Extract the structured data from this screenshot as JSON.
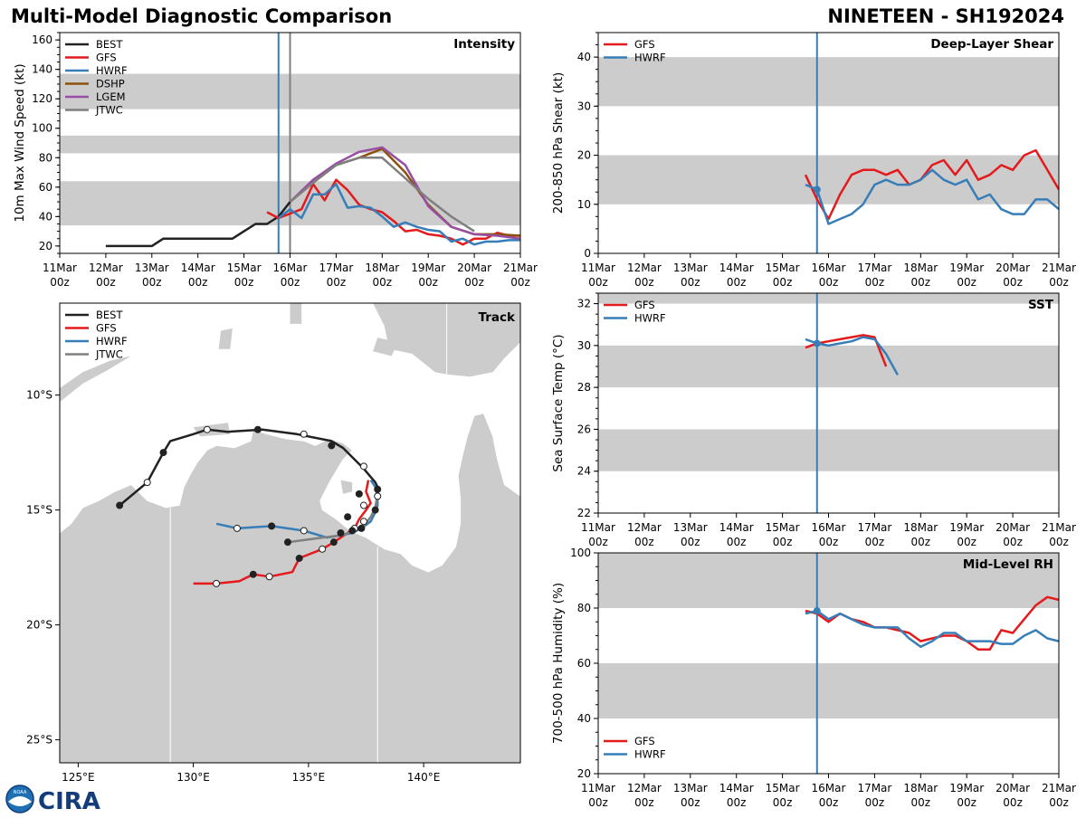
{
  "header": {
    "title": "Multi-Model Diagnostic Comparison",
    "storm": "NINETEEN - SH192024"
  },
  "colors": {
    "BEST": "#222222",
    "GFS": "#e41a1c",
    "HWRF": "#377eb8",
    "DSHP": "#8c510a",
    "LGEM": "#984ea3",
    "JTWC": "#7f7f7f",
    "land": "#cccccc",
    "band": "#cccccc"
  },
  "time_axis": {
    "labels": [
      "11Mar",
      "12Mar",
      "13Mar",
      "14Mar",
      "15Mar",
      "16Mar",
      "17Mar",
      "18Mar",
      "19Mar",
      "20Mar",
      "21Mar"
    ],
    "sublabel": "00z",
    "range": [
      0,
      10
    ]
  },
  "logo": {
    "text": "CIRA",
    "seal": "NOAA"
  },
  "chart_data": [
    {
      "id": "intensity",
      "type": "line",
      "title": "Intensity",
      "ylabel": "10m Max Wind Speed (kt)",
      "ylim": [
        15,
        165
      ],
      "yticks": [
        20,
        40,
        60,
        80,
        100,
        120,
        140,
        160
      ],
      "bands": [
        [
          34,
          64
        ],
        [
          83,
          95
        ],
        [
          113,
          137
        ]
      ],
      "vlines": [
        {
          "x": 4.75,
          "series": "HWRF"
        },
        {
          "x": 5.0,
          "series": "JTWC"
        }
      ],
      "series": [
        {
          "name": "BEST",
          "x": [
            1,
            1.5,
            2,
            2.25,
            2.5,
            3,
            3.5,
            3.75,
            4,
            4.25,
            4.5,
            4.75,
            5
          ],
          "y": [
            20,
            20,
            20,
            25,
            25,
            25,
            25,
            25,
            30,
            35,
            35,
            40,
            50
          ]
        },
        {
          "name": "GFS",
          "x": [
            4.5,
            4.75,
            5,
            5.25,
            5.5,
            5.75,
            6,
            6.25,
            6.5,
            6.75,
            7,
            7.25,
            7.5,
            7.75,
            8,
            8.25,
            8.5,
            8.75,
            9,
            9.25,
            9.5,
            9.75,
            10
          ],
          "y": [
            43,
            39,
            42,
            45,
            62,
            51,
            65,
            58,
            48,
            45,
            43,
            37,
            30,
            31,
            28,
            27,
            25,
            21,
            25,
            25,
            29,
            27,
            27
          ]
        },
        {
          "name": "HWRF",
          "x": [
            4.75,
            5,
            5.25,
            5.5,
            5.75,
            6,
            6.25,
            6.5,
            6.75,
            7,
            7.25,
            7.5,
            7.75,
            8,
            8.25,
            8.5,
            8.75,
            9,
            9.25,
            9.5,
            9.75,
            10
          ],
          "y": [
            39,
            45,
            39,
            55,
            55,
            62,
            46,
            47,
            46,
            40,
            33,
            36,
            33,
            31,
            30,
            23,
            25,
            21,
            23,
            23,
            24,
            24
          ]
        },
        {
          "name": "DSHP",
          "x": [
            5,
            5.5,
            6,
            6.5,
            7,
            7.5,
            8,
            8.5,
            9,
            9.5,
            10
          ],
          "y": [
            50,
            63,
            75,
            80,
            86,
            70,
            48,
            33,
            28,
            28,
            27
          ]
        },
        {
          "name": "LGEM",
          "x": [
            5,
            5.5,
            6,
            6.5,
            7,
            7.5,
            8,
            8.5,
            9,
            9.5,
            10
          ],
          "y": [
            50,
            65,
            76,
            84,
            87,
            75,
            47,
            33,
            28,
            27,
            25
          ]
        },
        {
          "name": "JTWC",
          "x": [
            5,
            5.5,
            6,
            6.5,
            7,
            7.5,
            8,
            8.5,
            9
          ],
          "y": [
            50,
            63,
            75,
            80,
            80,
            66,
            52,
            40,
            30
          ]
        }
      ]
    },
    {
      "id": "shear",
      "type": "line",
      "title": "Deep-Layer Shear",
      "ylabel": "200-850 hPa Shear (kt)",
      "ylim": [
        0,
        45
      ],
      "yticks": [
        0,
        10,
        20,
        30,
        40
      ],
      "bands": [
        [
          10,
          20
        ],
        [
          30,
          40
        ]
      ],
      "vlines": [
        {
          "x": 4.75,
          "series": "HWRF"
        }
      ],
      "series": [
        {
          "name": "GFS",
          "x": [
            4.5,
            4.75,
            5,
            5.25,
            5.5,
            5.75,
            6,
            6.25,
            6.5,
            6.75,
            7,
            7.25,
            7.5,
            7.75,
            8,
            8.25,
            8.5,
            8.75,
            9,
            9.25,
            9.5,
            9.75,
            10
          ],
          "y": [
            16,
            11,
            7,
            12,
            16,
            17,
            17,
            16,
            17,
            14,
            15,
            18,
            19,
            16,
            19,
            15,
            16,
            18,
            17,
            20,
            21,
            17,
            13
          ]
        },
        {
          "name": "HWRF",
          "x": [
            4.5,
            4.75,
            5,
            5.25,
            5.5,
            5.75,
            6,
            6.25,
            6.5,
            6.75,
            7,
            7.25,
            7.5,
            7.75,
            8,
            8.25,
            8.5,
            8.75,
            9,
            9.25,
            9.5,
            9.75,
            10
          ],
          "y": [
            14,
            13,
            6,
            7,
            8,
            10,
            14,
            15,
            14,
            14,
            15,
            17,
            15,
            14,
            15,
            11,
            12,
            9,
            8,
            8,
            11,
            11,
            9
          ]
        }
      ]
    },
    {
      "id": "sst",
      "type": "line",
      "title": "SST",
      "ylabel": "Sea Surface Temp (°C)",
      "ylim": [
        22,
        32.5
      ],
      "yticks": [
        22,
        24,
        26,
        28,
        30,
        32
      ],
      "bands": [
        [
          24,
          26
        ],
        [
          28,
          30
        ],
        [
          32,
          32.5
        ]
      ],
      "vlines": [
        {
          "x": 4.75,
          "series": "HWRF"
        }
      ],
      "series": [
        {
          "name": "GFS",
          "x": [
            4.5,
            4.75,
            5,
            5.25,
            5.5,
            5.75,
            6,
            6.25,
            6.5
          ],
          "y": [
            29.9,
            30.1,
            30.2,
            30.3,
            30.4,
            30.5,
            30.4,
            29.0,
            null
          ]
        },
        {
          "name": "HWRF",
          "x": [
            4.5,
            4.75,
            5,
            5.25,
            5.5,
            5.75,
            6,
            6.25,
            6.5
          ],
          "y": [
            30.3,
            30.1,
            30.0,
            30.1,
            30.2,
            30.4,
            30.3,
            29.6,
            28.6
          ]
        }
      ]
    },
    {
      "id": "rh",
      "type": "line",
      "title": "Mid-Level RH",
      "ylabel": "700-500 hPa Humidity (%)",
      "ylim": [
        20,
        100
      ],
      "yticks": [
        20,
        40,
        60,
        80,
        100
      ],
      "bands": [
        [
          40,
          60
        ],
        [
          80,
          100
        ]
      ],
      "vlines": [
        {
          "x": 4.75,
          "series": "HWRF"
        }
      ],
      "series": [
        {
          "name": "GFS",
          "x": [
            4.5,
            4.75,
            5,
            5.25,
            5.5,
            5.75,
            6,
            6.25,
            6.5,
            6.75,
            7,
            7.25,
            7.5,
            7.75,
            8,
            8.25,
            8.5,
            8.75,
            9,
            9.25,
            9.5,
            9.75,
            10
          ],
          "y": [
            79,
            78,
            75,
            78,
            76,
            75,
            73,
            73,
            72,
            71,
            68,
            69,
            70,
            70,
            68,
            65,
            65,
            72,
            71,
            76,
            81,
            84,
            83
          ]
        },
        {
          "name": "HWRF",
          "x": [
            4.5,
            4.75,
            5,
            5.25,
            5.5,
            5.75,
            6,
            6.25,
            6.5,
            6.75,
            7,
            7.25,
            7.5,
            7.75,
            8,
            8.25,
            8.5,
            8.75,
            9,
            9.25,
            9.5,
            9.75,
            10
          ],
          "y": [
            78,
            79,
            76,
            78,
            76,
            74,
            73,
            73,
            73,
            69,
            66,
            68,
            71,
            71,
            68,
            68,
            68,
            67,
            67,
            70,
            72,
            69,
            68
          ]
        }
      ]
    },
    {
      "id": "track",
      "type": "scatter",
      "title": "Track",
      "lon_range": [
        124.2,
        144.2
      ],
      "lat_range": [
        -26,
        -6
      ],
      "xticks": [
        {
          "v": 125,
          "label": "125°E"
        },
        {
          "v": 130,
          "label": "130°E"
        },
        {
          "v": 135,
          "label": "135°E"
        },
        {
          "v": 140,
          "label": "140°E"
        }
      ],
      "yticks": [
        {
          "v": -10,
          "label": "10°S"
        },
        {
          "v": -15,
          "label": "15°S"
        },
        {
          "v": -20,
          "label": "20°S"
        },
        {
          "v": -25,
          "label": "25°S"
        }
      ],
      "series": [
        {
          "name": "BEST",
          "lon": [
            138.0,
            138.0,
            137.9,
            137.4,
            136.5,
            136.0,
            134.5,
            133.0,
            131.5,
            130.6,
            130.0,
            129.0,
            128.7,
            128.0,
            126.8
          ],
          "lat": [
            -14.3,
            -14.0,
            -13.8,
            -13.2,
            -12.3,
            -12.0,
            -11.7,
            -11.5,
            -11.6,
            -11.5,
            -11.7,
            -12.0,
            -12.5,
            -13.8,
            -14.8
          ]
        },
        {
          "name": "GFS",
          "lon": [
            137.6,
            137.5,
            137.7,
            137.5,
            137.2,
            137.0,
            136.7,
            136.1,
            135.6,
            134.6,
            134.3,
            133.3,
            132.6,
            132.0,
            131.0,
            130.0
          ],
          "lat": [
            -13.7,
            -14.2,
            -14.7,
            -15.0,
            -15.4,
            -15.8,
            -16.0,
            -16.4,
            -16.7,
            -17.1,
            -17.7,
            -17.9,
            -17.8,
            -18.1,
            -18.2,
            -18.2
          ]
        },
        {
          "name": "HWRF",
          "lon": [
            137.7,
            137.9,
            138.0,
            138.0,
            137.9,
            137.7,
            137.3,
            136.9,
            136.4,
            135.8,
            134.8,
            133.4,
            131.9,
            131.0
          ],
          "lat": [
            -13.7,
            -14.0,
            -14.4,
            -14.8,
            -15.1,
            -15.5,
            -15.8,
            -16.0,
            -16.1,
            -16.2,
            -15.9,
            -15.7,
            -15.8,
            -15.6
          ]
        },
        {
          "name": "JTWC",
          "lon": [
            137.9,
            138.0,
            137.9,
            137.7,
            137.4,
            137.0,
            136.5,
            135.6,
            134.1
          ],
          "lat": [
            -14.0,
            -14.3,
            -14.9,
            -15.3,
            -15.7,
            -15.9,
            -16.1,
            -16.2,
            -16.4
          ]
        }
      ],
      "points": [
        {
          "series": "BEST",
          "lon": [
            126.8,
            128.7,
            132.8,
            136.0
          ],
          "lat": [
            -14.8,
            -12.5,
            -11.5,
            -12.2
          ],
          "filled": true
        },
        {
          "series": "BEST",
          "lon": [
            128.0,
            130.6,
            134.8,
            137.4
          ],
          "lat": [
            -13.8,
            -11.5,
            -11.7,
            -13.1
          ],
          "filled": false
        },
        {
          "series": "GFS",
          "lon": [
            137.2,
            136.7,
            136.1,
            134.6,
            132.6
          ],
          "lat": [
            -14.3,
            -15.3,
            -16.4,
            -17.1,
            -17.8
          ],
          "filled": true
        },
        {
          "series": "GFS",
          "lon": [
            137.4,
            137.0,
            135.6,
            133.3,
            131.0
          ],
          "lat": [
            -14.8,
            -15.8,
            -16.7,
            -17.9,
            -18.2
          ],
          "filled": false
        },
        {
          "series": "HWRF",
          "lon": [
            137.9,
            136.9,
            133.4
          ],
          "lat": [
            -15.0,
            -15.9,
            -15.7
          ],
          "filled": true
        },
        {
          "series": "HWRF",
          "lon": [
            138.0,
            137.4,
            134.8,
            131.9
          ],
          "lat": [
            -14.4,
            -15.5,
            -15.9,
            -15.8
          ],
          "filled": false
        },
        {
          "series": "JTWC",
          "lon": [
            138.0,
            137.3,
            136.4,
            134.1
          ],
          "lat": [
            -14.1,
            -15.8,
            -16.0,
            -16.4
          ],
          "filled": true
        }
      ]
    }
  ]
}
